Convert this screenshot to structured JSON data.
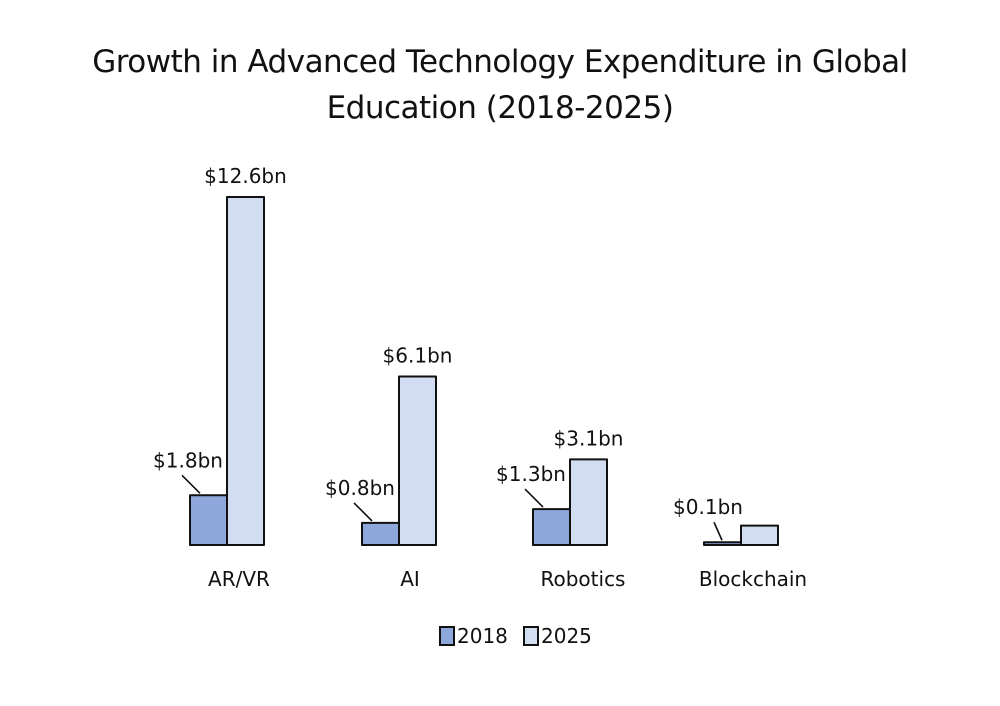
{
  "chart_data": {
    "type": "bar",
    "title_lines": [
      "Growth in Advanced Technology Expenditure in Global",
      "Education (2018-2025)"
    ],
    "categories": [
      "AR/VR",
      "AI",
      "Robotics",
      "Blockchain"
    ],
    "series": [
      {
        "name": "2018",
        "values": [
          1.8,
          0.8,
          1.3,
          0.1
        ],
        "labels": [
          "$1.8bn",
          "$0.8bn",
          "$1.3bn",
          "$0.1bn"
        ],
        "color": "#8fa8dc"
      },
      {
        "name": "2025",
        "values": [
          12.6,
          6.1,
          3.1,
          0.7
        ],
        "labels": [
          "$12.6bn",
          "$6.1bn",
          "$3.1bn",
          ""
        ],
        "color": "#d3ddf1"
      }
    ],
    "ylim": [
      0,
      12.6
    ],
    "grid": false,
    "legend_position": "bottom-center",
    "outline_color": "#111111"
  }
}
